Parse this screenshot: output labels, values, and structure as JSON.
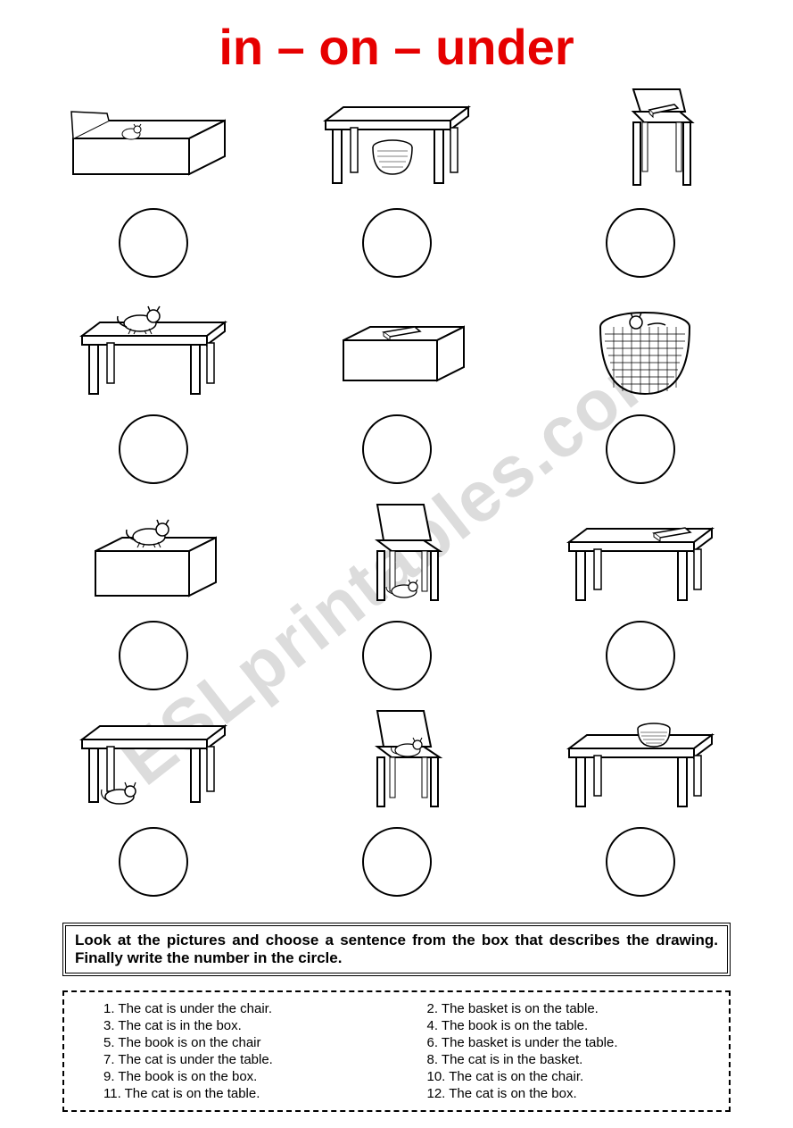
{
  "title": "in – on – under",
  "title_color": "#e60000",
  "watermark": "ESLprintables.com",
  "watermark_color": "#dcdcdc",
  "instructions": "Look at the pictures and choose a sentence from the box that describes the drawing. Finally write the number in the circle.",
  "pictures": [
    {
      "id": "cat-in-box",
      "desc": "cat in box"
    },
    {
      "id": "basket-under-table",
      "desc": "basket under table"
    },
    {
      "id": "book-on-chair",
      "desc": "book on chair"
    },
    {
      "id": "cat-on-table",
      "desc": "cat on table"
    },
    {
      "id": "book-on-box",
      "desc": "book on box"
    },
    {
      "id": "cat-in-basket",
      "desc": "cat in basket"
    },
    {
      "id": "cat-on-box",
      "desc": "cat on box"
    },
    {
      "id": "cat-under-chair",
      "desc": "cat under chair"
    },
    {
      "id": "book-on-table",
      "desc": "book on table"
    },
    {
      "id": "cat-under-table",
      "desc": "cat under table"
    },
    {
      "id": "cat-on-chair",
      "desc": "cat on chair"
    },
    {
      "id": "basket-on-table",
      "desc": "basket on table"
    }
  ],
  "sentences": [
    {
      "num": "1.",
      "text": "The cat is under the chair."
    },
    {
      "num": "2.",
      "text": "The basket is on the table."
    },
    {
      "num": "3.",
      "text": "The cat is in the box."
    },
    {
      "num": "4.",
      "text": "The book is on the table."
    },
    {
      "num": "5.",
      "text": "The book is on the chair"
    },
    {
      "num": "6.",
      "text": "The basket is under the table."
    },
    {
      "num": "7.",
      "text": "The cat is under the table."
    },
    {
      "num": "8.",
      "text": "The cat is in the basket."
    },
    {
      "num": "9.",
      "text": "The book is on the box."
    },
    {
      "num": "10.",
      "text": "The cat is on the chair."
    },
    {
      "num": "11.",
      "text": "The cat is on the table."
    },
    {
      "num": "12.",
      "text": "The cat is on the box."
    }
  ],
  "colors": {
    "stroke": "#000000",
    "bg": "#ffffff",
    "circle_border": "#000000"
  }
}
